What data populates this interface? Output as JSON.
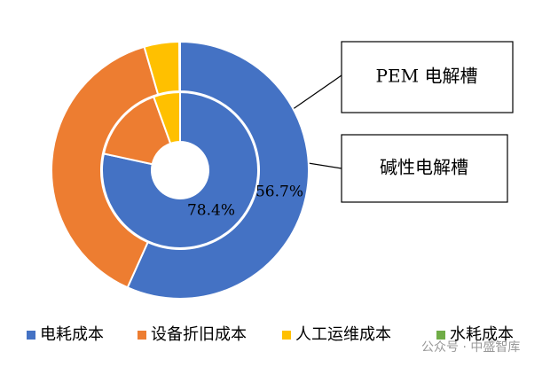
{
  "chart_data": {
    "type": "donut",
    "categories": [
      "电耗成本",
      "设备折旧成本",
      "人工运维成本",
      "水耗成本"
    ],
    "colors": [
      "#4472c4",
      "#ed7d31",
      "#ffc000",
      "#70ad47"
    ],
    "series": [
      {
        "name": "PEM 电解槽",
        "values": [
          56.7,
          38.8,
          4.4,
          0.1
        ],
        "value_labels": [
          "56.7%",
          null,
          null,
          null
        ]
      },
      {
        "name": "碱性电解槽",
        "values": [
          78.4,
          16.1,
          5.5,
          0
        ],
        "value_labels": [
          "78.4%",
          null,
          null,
          null
        ]
      }
    ],
    "watermark": "公众号 · 中盛智库"
  }
}
